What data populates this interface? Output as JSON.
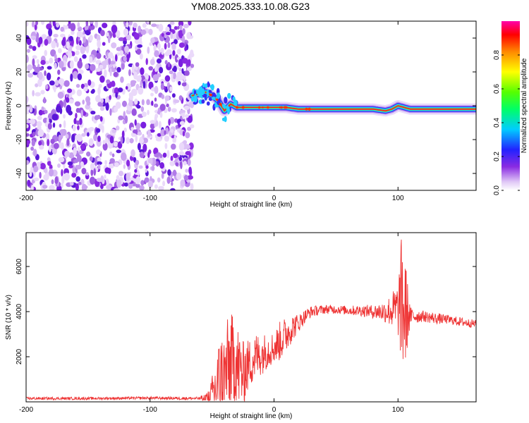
{
  "title": "YM08.2025.333.10.08.G23",
  "chart_data": [
    {
      "type": "heatmap",
      "xlabel": "Height of straight line (km)",
      "ylabel": "Frequency (Hz)",
      "xlim": [
        -200,
        163
      ],
      "ylim": [
        -50,
        50
      ],
      "xticks": [
        -200,
        -100,
        0,
        100
      ],
      "xtick_labels": [
        "-200",
        "-100",
        "0",
        "100"
      ],
      "yticks": [
        -40,
        -20,
        0,
        20,
        40
      ],
      "ytick_labels": [
        "-40",
        "-20",
        "0",
        "20",
        "40"
      ],
      "noise_region_x": [
        -200,
        -66
      ],
      "ridge": {
        "x": [
          -66,
          -60,
          -55,
          -50,
          -45,
          -40,
          -35,
          -30,
          -20,
          -10,
          0,
          10,
          20,
          40,
          60,
          80,
          90,
          95,
          100,
          110,
          130,
          150,
          163
        ],
        "freq": [
          6,
          7,
          8,
          6,
          3,
          -3,
          1,
          -1,
          -1,
          -1,
          -1,
          -1,
          -2,
          -2,
          -2,
          -2,
          -3,
          -2,
          0,
          -2,
          -2,
          -2,
          -2
        ]
      },
      "colorbar": {
        "label": "Normalized spectral amplitude",
        "range": [
          0.0,
          1.0
        ],
        "ticks": [
          0.0,
          0.2,
          0.4,
          0.6,
          0.8
        ],
        "tick_labels": [
          "0.0",
          "0.2",
          "0.4",
          "0.6",
          "0.8"
        ]
      }
    },
    {
      "type": "line",
      "xlabel": "Height of straight line (km)",
      "ylabel": "SNR (10 * v/v)",
      "xlim": [
        -200,
        163
      ],
      "ylim": [
        0,
        7500
      ],
      "xticks": [
        -200,
        -100,
        0,
        100
      ],
      "xtick_labels": [
        "-200",
        "-100",
        "0",
        "100"
      ],
      "yticks": [
        2000,
        4000,
        6000
      ],
      "ytick_labels": [
        "2000",
        "4000",
        "6000"
      ],
      "color": "#ee3333",
      "series": [
        {
          "name": "SNR",
          "x": [
            -200,
            -150,
            -100,
            -60,
            -52,
            -48,
            -45,
            -40,
            -35,
            -30,
            -25,
            -20,
            -15,
            -10,
            -5,
            0,
            5,
            10,
            15,
            20,
            25,
            30,
            40,
            50,
            60,
            70,
            80,
            90,
            95,
            100,
            103,
            105,
            107,
            110,
            120,
            130,
            140,
            150,
            163
          ],
          "y": [
            150,
            150,
            170,
            150,
            200,
            500,
            900,
            1200,
            1800,
            1600,
            1200,
            1700,
            2000,
            2100,
            2300,
            2400,
            2700,
            3000,
            3300,
            3500,
            3800,
            4000,
            4100,
            4100,
            4050,
            4050,
            4000,
            4000,
            4050,
            4100,
            4500,
            4000,
            3900,
            3800,
            3800,
            3700,
            3650,
            3550,
            3450
          ],
          "spread": [
            60,
            60,
            60,
            70,
            400,
            1200,
            1800,
            2200,
            2200,
            2000,
            1500,
            1100,
            1100,
            900,
            800,
            700,
            900,
            800,
            600,
            400,
            300,
            250,
            200,
            200,
            200,
            250,
            300,
            500,
            800,
            1200,
            3000,
            3400,
            1800,
            400,
            250,
            250,
            200,
            200,
            180
          ]
        }
      ]
    }
  ]
}
